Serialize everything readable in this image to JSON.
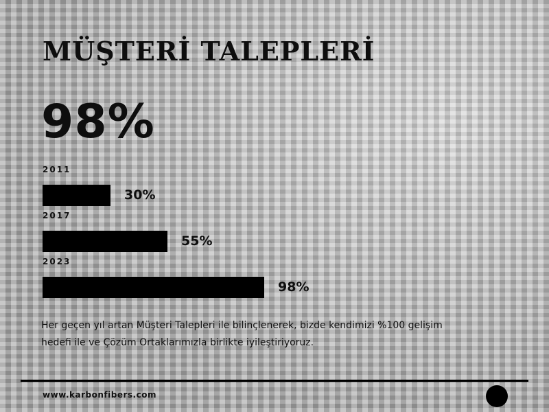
{
  "title": "MÜŞTERİ TALEPLERİ",
  "headline_value": "98%",
  "chart_data": {
    "type": "bar",
    "orientation": "horizontal",
    "categories": [
      "2011",
      "2017",
      "2023"
    ],
    "values": [
      30,
      55,
      98
    ],
    "value_labels": [
      "30%",
      "55%",
      "98%"
    ],
    "xlim": [
      0,
      100
    ],
    "grid": false,
    "bar_color": "#000000"
  },
  "description": "Her geçen yıl artan Müşteri Talepleri ile bilinçlenerek, bizde kendimizi %100 gelişim hedefi ile ve Çözüm Ortaklarımızla birlikte iyileştiriyoruz.",
  "footer": {
    "website": "www.karbonfibers.com",
    "dot_icon": "filled-circle"
  }
}
